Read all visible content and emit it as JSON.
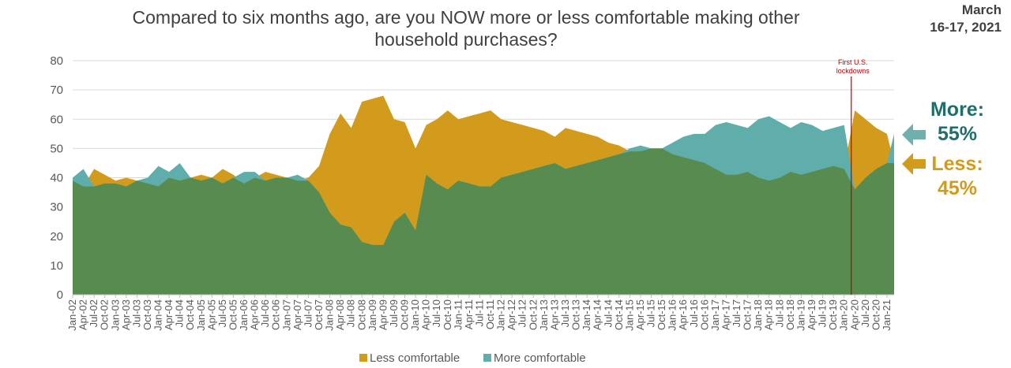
{
  "title": "Compared to six months ago, are you NOW more or less comfortable making other household purchases?",
  "date_label": [
    "March",
    "16-17, 2021"
  ],
  "callouts": {
    "more_label": "More:",
    "more_value": "55%",
    "less_label": "Less:",
    "less_value": "45%"
  },
  "colors": {
    "less": "#d39b1c",
    "more": "#5faeab",
    "overlap": "#578b50",
    "annotation": "#c00000",
    "more_text": "#1e6f6a",
    "less_text": "#d39b1c",
    "arrow_more": "#6fb0ae",
    "arrow_less": "#d39b1c"
  },
  "chart_data": {
    "type": "area",
    "yticks": [
      0,
      10,
      20,
      30,
      40,
      50,
      60,
      70,
      80
    ],
    "ylim": [
      0,
      80
    ],
    "x_ticks": [
      "Jan-02",
      "Apr-02",
      "Jul-02",
      "Oct-02",
      "Jan-03",
      "Apr-03",
      "Jul-03",
      "Oct-03",
      "Jan-04",
      "Apr-04",
      "Jul-04",
      "Oct-04",
      "Jan-05",
      "Apr-05",
      "Jul-05",
      "Oct-05",
      "Jan-06",
      "Apr-06",
      "Jul-06",
      "Oct-06",
      "Jan-07",
      "Apr-07",
      "Jul-07",
      "Oct-07",
      "Jan-08",
      "Apr-08",
      "Jul-08",
      "Oct-08",
      "Jan-09",
      "Apr-09",
      "Jul-09",
      "Oct-09",
      "Jan-10",
      "Apr-10",
      "Jul-10",
      "Oct-10",
      "Jan-11",
      "Apr-11",
      "Jul-11",
      "Oct-11",
      "Jan-12",
      "Apr-12",
      "Jul-12",
      "Oct-12",
      "Jan-13",
      "Apr-13",
      "Jul-13",
      "Oct-13",
      "Jan-14",
      "Apr-14",
      "Jul-14",
      "Oct-14",
      "Jan-15",
      "Apr-15",
      "Jul-15",
      "Oct-15",
      "Jan-16",
      "Apr-16",
      "Jul-16",
      "Oct-16",
      "Jan-17",
      "Apr-17",
      "Jul-17",
      "Oct-17",
      "Jan-18",
      "Apr-18",
      "Jul-18",
      "Oct-18",
      "Jan-19",
      "Apr-19",
      "Jul-19",
      "Oct-19",
      "Jan-20",
      "Apr-20",
      "Jul-20",
      "Oct-20",
      "Jan-21"
    ],
    "legend_position": "bottom",
    "annotation": {
      "text": [
        "First U.S.",
        "lockdowns"
      ],
      "x": "Mar-20"
    },
    "series": [
      {
        "name": "Less comfortable",
        "points": [
          [
            "Jan-02",
            39
          ],
          [
            "Apr-02",
            37
          ],
          [
            "Jul-02",
            43
          ],
          [
            "Oct-02",
            41
          ],
          [
            "Jan-03",
            39
          ],
          [
            "Apr-03",
            40
          ],
          [
            "Jul-03",
            39
          ],
          [
            "Oct-03",
            38
          ],
          [
            "Jan-04",
            37
          ],
          [
            "Apr-04",
            40
          ],
          [
            "Jul-04",
            39
          ],
          [
            "Oct-04",
            40
          ],
          [
            "Jan-05",
            41
          ],
          [
            "Apr-05",
            40
          ],
          [
            "Jul-05",
            43
          ],
          [
            "Oct-05",
            41
          ],
          [
            "Jan-06",
            38
          ],
          [
            "Apr-06",
            40
          ],
          [
            "Jul-06",
            42
          ],
          [
            "Oct-06",
            41
          ],
          [
            "Jan-07",
            40
          ],
          [
            "Apr-07",
            39
          ],
          [
            "Jul-07",
            40
          ],
          [
            "Oct-07",
            44
          ],
          [
            "Jan-08",
            55
          ],
          [
            "Apr-08",
            62
          ],
          [
            "Jul-08",
            57
          ],
          [
            "Oct-08",
            66
          ],
          [
            "Jan-09",
            67
          ],
          [
            "Apr-09",
            68
          ],
          [
            "Jul-09",
            60
          ],
          [
            "Oct-09",
            59
          ],
          [
            "Jan-10",
            50
          ],
          [
            "Apr-10",
            58
          ],
          [
            "Jul-10",
            60
          ],
          [
            "Oct-10",
            63
          ],
          [
            "Jan-11",
            60
          ],
          [
            "Apr-11",
            61
          ],
          [
            "Jul-11",
            62
          ],
          [
            "Oct-11",
            63
          ],
          [
            "Jan-12",
            60
          ],
          [
            "Apr-12",
            59
          ],
          [
            "Jul-12",
            58
          ],
          [
            "Oct-12",
            57
          ],
          [
            "Jan-13",
            56
          ],
          [
            "Apr-13",
            54
          ],
          [
            "Jul-13",
            57
          ],
          [
            "Oct-13",
            56
          ],
          [
            "Jan-14",
            55
          ],
          [
            "Apr-14",
            54
          ],
          [
            "Jul-14",
            52
          ],
          [
            "Oct-14",
            51
          ],
          [
            "Jan-15",
            49
          ],
          [
            "Apr-15",
            49
          ],
          [
            "Jul-15",
            50
          ],
          [
            "Oct-15",
            50
          ],
          [
            "Jan-16",
            48
          ],
          [
            "Apr-16",
            47
          ],
          [
            "Jul-16",
            46
          ],
          [
            "Oct-16",
            45
          ],
          [
            "Jan-17",
            43
          ],
          [
            "Apr-17",
            41
          ],
          [
            "Jul-17",
            41
          ],
          [
            "Oct-17",
            42
          ],
          [
            "Jan-18",
            40
          ],
          [
            "Apr-18",
            39
          ],
          [
            "Jul-18",
            40
          ],
          [
            "Oct-18",
            42
          ],
          [
            "Jan-19",
            41
          ],
          [
            "Apr-19",
            42
          ],
          [
            "Jul-19",
            43
          ],
          [
            "Oct-19",
            44
          ],
          [
            "Jan-20",
            43
          ],
          [
            "Apr-20",
            63
          ],
          [
            "Jul-20",
            60
          ],
          [
            "Oct-20",
            57
          ],
          [
            "Jan-21",
            55
          ],
          [
            "Mar-21",
            45
          ]
        ]
      },
      {
        "name": "More comfortable",
        "points": [
          [
            "Jan-02",
            40
          ],
          [
            "Apr-02",
            43
          ],
          [
            "Jul-02",
            37
          ],
          [
            "Oct-02",
            38
          ],
          [
            "Jan-03",
            38
          ],
          [
            "Apr-03",
            37
          ],
          [
            "Jul-03",
            39
          ],
          [
            "Oct-03",
            40
          ],
          [
            "Jan-04",
            44
          ],
          [
            "Apr-04",
            42
          ],
          [
            "Jul-04",
            45
          ],
          [
            "Oct-04",
            40
          ],
          [
            "Jan-05",
            39
          ],
          [
            "Apr-05",
            40
          ],
          [
            "Jul-05",
            38
          ],
          [
            "Oct-05",
            40
          ],
          [
            "Jan-06",
            42
          ],
          [
            "Apr-06",
            42
          ],
          [
            "Jul-06",
            39
          ],
          [
            "Oct-06",
            40
          ],
          [
            "Jan-07",
            40
          ],
          [
            "Apr-07",
            41
          ],
          [
            "Jul-07",
            39
          ],
          [
            "Oct-07",
            35
          ],
          [
            "Jan-08",
            28
          ],
          [
            "Apr-08",
            24
          ],
          [
            "Jul-08",
            23
          ],
          [
            "Oct-08",
            18
          ],
          [
            "Jan-09",
            17
          ],
          [
            "Apr-09",
            17
          ],
          [
            "Jul-09",
            25
          ],
          [
            "Oct-09",
            28
          ],
          [
            "Jan-10",
            22
          ],
          [
            "Apr-10",
            41
          ],
          [
            "Jul-10",
            38
          ],
          [
            "Oct-10",
            36
          ],
          [
            "Jan-11",
            39
          ],
          [
            "Apr-11",
            38
          ],
          [
            "Jul-11",
            37
          ],
          [
            "Oct-11",
            37
          ],
          [
            "Jan-12",
            40
          ],
          [
            "Apr-12",
            41
          ],
          [
            "Jul-12",
            42
          ],
          [
            "Oct-12",
            43
          ],
          [
            "Jan-13",
            44
          ],
          [
            "Apr-13",
            45
          ],
          [
            "Jul-13",
            43
          ],
          [
            "Oct-13",
            44
          ],
          [
            "Jan-14",
            45
          ],
          [
            "Apr-14",
            46
          ],
          [
            "Jul-14",
            47
          ],
          [
            "Oct-14",
            48
          ],
          [
            "Jan-15",
            50
          ],
          [
            "Apr-15",
            51
          ],
          [
            "Jul-15",
            50
          ],
          [
            "Oct-15",
            50
          ],
          [
            "Jan-16",
            52
          ],
          [
            "Apr-16",
            54
          ],
          [
            "Jul-16",
            55
          ],
          [
            "Oct-16",
            55
          ],
          [
            "Jan-17",
            58
          ],
          [
            "Apr-17",
            59
          ],
          [
            "Jul-17",
            58
          ],
          [
            "Oct-17",
            57
          ],
          [
            "Jan-18",
            60
          ],
          [
            "Apr-18",
            61
          ],
          [
            "Jul-18",
            59
          ],
          [
            "Oct-18",
            57
          ],
          [
            "Jan-19",
            59
          ],
          [
            "Apr-19",
            58
          ],
          [
            "Jul-19",
            56
          ],
          [
            "Oct-19",
            57
          ],
          [
            "Jan-20",
            58
          ],
          [
            "Apr-20",
            36
          ],
          [
            "Jul-20",
            40
          ],
          [
            "Oct-20",
            43
          ],
          [
            "Jan-21",
            45
          ],
          [
            "Mar-21",
            55
          ]
        ]
      }
    ]
  }
}
